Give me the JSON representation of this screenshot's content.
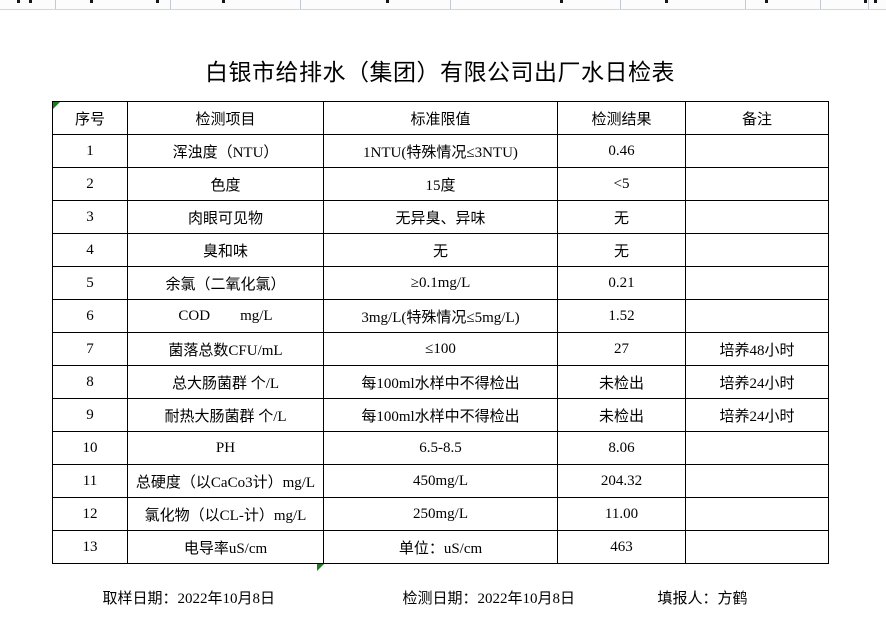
{
  "title": "白银市给排水（集团）有限公司出厂水日检表",
  "table": {
    "headers": [
      "序号",
      "检测项目",
      "标准限值",
      "检测结果",
      "备注"
    ],
    "rows": [
      {
        "no": "1",
        "item": "浑浊度（NTU）",
        "limit": "1NTU(特殊情况≤3NTU)",
        "result": "0.46",
        "note": ""
      },
      {
        "no": "2",
        "item": "色度",
        "limit": "15度",
        "result": "<5",
        "note": ""
      },
      {
        "no": "3",
        "item": "肉眼可见物",
        "limit": "无异臭、异味",
        "result": "无",
        "note": ""
      },
      {
        "no": "4",
        "item": "臭和味",
        "limit": "无",
        "result": "无",
        "note": ""
      },
      {
        "no": "5",
        "item": "余氯（二氧化氯）",
        "limit": "≥0.1mg/L",
        "result": "0.21",
        "note": ""
      },
      {
        "no": "6",
        "item": "COD        mg/L",
        "limit": "3mg/L(特殊情况≤5mg/L)",
        "result": "1.52",
        "note": ""
      },
      {
        "no": "7",
        "item": "菌落总数CFU/mL",
        "limit": "≤100",
        "result": "27",
        "note": "培养48小时"
      },
      {
        "no": "8",
        "item": "总大肠菌群 个/L",
        "limit": "每100ml水样中不得检出",
        "result": "未检出",
        "note": "培养24小时"
      },
      {
        "no": "9",
        "item": "耐热大肠菌群 个/L",
        "limit": "每100ml水样中不得检出",
        "result": "未检出",
        "note": "培养24小时"
      },
      {
        "no": "10",
        "item": "PH",
        "limit": "6.5-8.5",
        "result": "8.06",
        "note": ""
      },
      {
        "no": "11",
        "item": "总硬度（以CaCo3计）mg/L",
        "limit": "450mg/L",
        "result": "204.32",
        "note": ""
      },
      {
        "no": "12",
        "item": "氯化物（以CL-计）mg/L",
        "limit": "250mg/L",
        "result": "11.00",
        "note": ""
      },
      {
        "no": "13",
        "item": "电导率uS/cm",
        "limit": "单位：uS/cm",
        "result": "463",
        "note": ""
      }
    ]
  },
  "footer": {
    "items": [
      {
        "label": "取样日期：",
        "value": "2022年10月8日"
      },
      {
        "label": "检测日期：",
        "value": "2022年10月8日"
      },
      {
        "label": "填报人：",
        "value": "方鹤"
      }
    ]
  },
  "icons": {
    "corner_error_indicator": "excel-error-triangle",
    "bottom_error_indicator": "excel-error-triangle"
  },
  "colors": {
    "error_indicator_green": "#217a21",
    "grid_line_gray": "#c3c9d2",
    "table_border": "#000000"
  }
}
